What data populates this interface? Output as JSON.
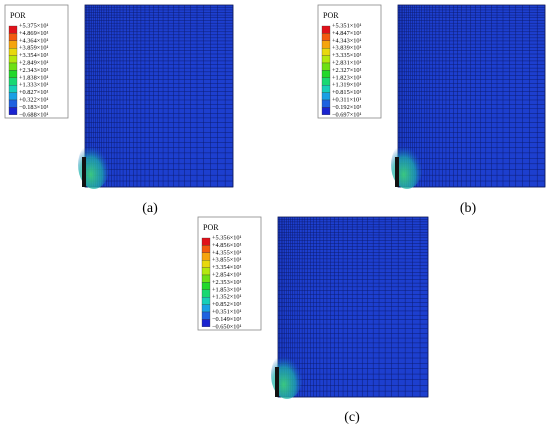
{
  "panels": [
    {
      "label": "(a)",
      "legend": {
        "title": "POR",
        "labels": [
          "+5.375×10¹",
          "+4.869×10¹",
          "+4.364×10¹",
          "+3.859×10¹",
          "+3.354×10¹",
          "+2.849×10¹",
          "+2.343×10¹",
          "+1.838×10¹",
          "+1.333×10¹",
          "+0.827×10¹",
          "+0.322×10¹",
          "−0.183×10¹",
          "−0.688×10¹"
        ]
      }
    },
    {
      "label": "(b)",
      "legend": {
        "title": "POR",
        "labels": [
          "+5.351×10¹",
          "+4.847×10¹",
          "+4.343×10¹",
          "+3.839×10¹",
          "+3.335×10¹",
          "+2.831×10¹",
          "+2.327×10¹",
          "+1.823×10¹",
          "+1.319×10¹",
          "+0.815×10¹",
          "+0.311×10¹",
          "−0.192×10¹",
          "−0.697×10¹"
        ]
      }
    },
    {
      "label": "(c)",
      "legend": {
        "title": "POR",
        "labels": [
          "+5.356×10¹",
          "+4.856×10¹",
          "+4.355×10¹",
          "+3.855×10¹",
          "+3.354×10¹",
          "+2.854×10¹",
          "+2.353×10¹",
          "+1.853×10¹",
          "+1.352×10¹",
          "+0.852×10¹",
          "+0.351×10¹",
          "−0.149×10¹",
          "−0.650×10¹"
        ]
      }
    }
  ]
}
